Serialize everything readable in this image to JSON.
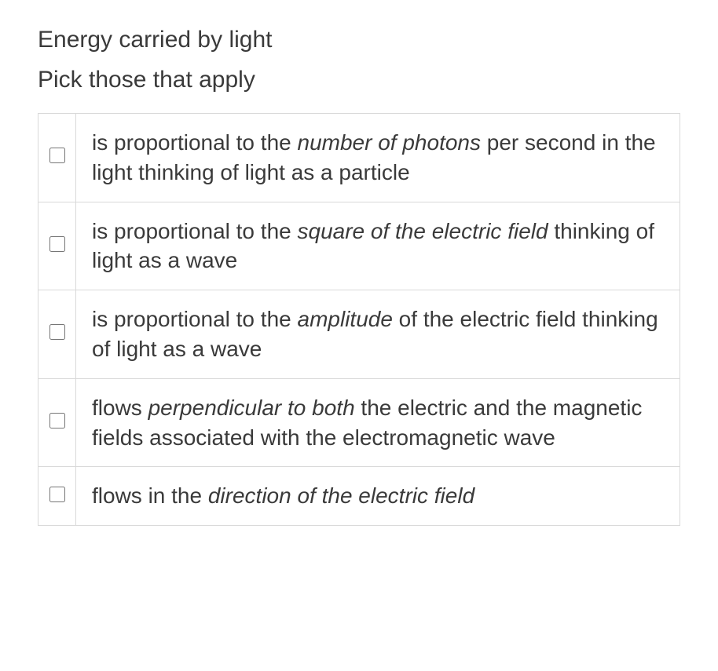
{
  "question": {
    "title": "Energy carried by light",
    "subtitle": "Pick those that apply",
    "options": [
      {
        "pre": "is proportional to the ",
        "em": "number of photons",
        "post": " per second in the light thinking of light as a particle"
      },
      {
        "pre": "is proportional to the ",
        "em": "square of the electric field",
        "post": " thinking of light as a wave"
      },
      {
        "pre": "is proportional to the ",
        "em": "amplitude",
        "post": " of the electric field thinking of light as a wave"
      },
      {
        "pre": "flows ",
        "em": "perpendicular to both",
        "post": " the electric and the magnetic fields associated with the electromagnetic wave"
      },
      {
        "pre": "flows in the ",
        "em": "direction of the electric field",
        "post": ""
      }
    ]
  },
  "style": {
    "text_color": "#3a3a3a",
    "border_color": "#d9d9d9",
    "background_color": "#ffffff",
    "heading_fontsize": 30,
    "option_fontsize": 28
  }
}
